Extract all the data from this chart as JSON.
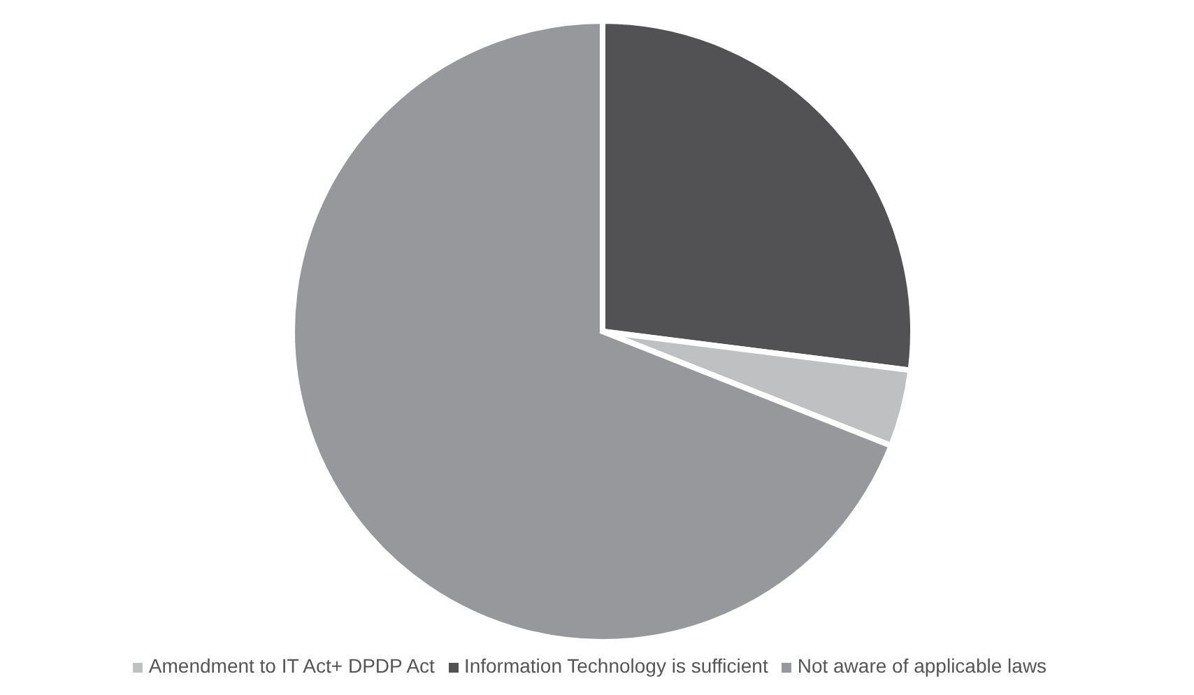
{
  "chart_data": {
    "type": "pie",
    "categories": [
      "Information Technology is sufficient",
      "Amendment to IT Act+ DPDP Act",
      "Not aware of applicable laws"
    ],
    "values": [
      27,
      4,
      69
    ],
    "colors": [
      "#525254",
      "#bfc0c2",
      "#97989b"
    ],
    "legend": "bottom"
  }
}
